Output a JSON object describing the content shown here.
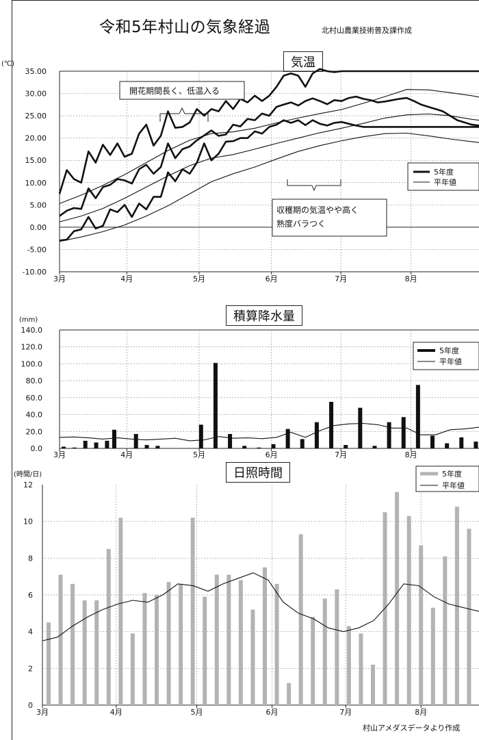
{
  "header": {
    "title": "令和5年村山の気象経過",
    "credit": "北村山農業技術普及課作成"
  },
  "footer": {
    "source": "村山アメダスデータより作成"
  },
  "chart_data": [
    {
      "type": "line",
      "title": "気温",
      "unit_label": "(℃)",
      "ylim": [
        -10,
        35
      ],
      "yticks": [
        "35.00",
        "30.00",
        "25.00",
        "20.00",
        "15.00",
        "10.00",
        "5.00",
        "0.00",
        "-5.00",
        "-10.00"
      ],
      "xticks": [
        "3月",
        "4月",
        "5月",
        "6月",
        "7月",
        "8月"
      ],
      "x_domain": [
        0,
        58
      ],
      "x_tick_positions": [
        0,
        9.3,
        19.3,
        29.3,
        38.9,
        48.6
      ],
      "legend": [
        {
          "name": "5年度",
          "style": "thick"
        },
        {
          "name": "平年値",
          "style": "thin"
        }
      ],
      "annotations": [
        "開花期間長く、低温入る",
        "収穫期の気温やや高く\n熟度バラつく"
      ],
      "series": [
        {
          "name": "5年度 最高",
          "style": "thick",
          "x": [
            0,
            1,
            2,
            3,
            4,
            5,
            6,
            7,
            8,
            9,
            10,
            11,
            12,
            13,
            14,
            15,
            16,
            17,
            18,
            19,
            20,
            21,
            22,
            23,
            24,
            25,
            26,
            27,
            28,
            29,
            30,
            31,
            32,
            33,
            34,
            35,
            36,
            37,
            38,
            39,
            40,
            41,
            42,
            43,
            44,
            45,
            46,
            47,
            48,
            49,
            50,
            51,
            52,
            53,
            54,
            55,
            56,
            57,
            58
          ],
          "y": [
            7.5,
            12.8,
            10.8,
            10,
            17,
            14.5,
            18.5,
            16.2,
            18.8,
            15.8,
            16.5,
            21,
            23,
            18.3,
            20.5,
            26,
            22.3,
            22.5,
            23.5,
            26.5,
            25,
            26.5,
            26,
            28.3,
            26.5,
            28.8,
            28,
            29.5,
            28.3,
            29.5,
            31.5,
            34,
            34.5,
            34,
            31.5,
            34.5,
            35.5,
            35,
            34.8,
            35,
            35,
            35,
            35,
            35,
            35,
            35,
            35,
            35,
            35,
            35,
            35,
            35,
            35,
            35,
            35,
            35,
            35,
            35,
            35
          ]
        },
        {
          "name": "平年値 最高",
          "style": "thin",
          "x": [
            0,
            3,
            6,
            9,
            12,
            15,
            18,
            21,
            24,
            27,
            30,
            33,
            36,
            39,
            42,
            45,
            48,
            51,
            54,
            57,
            58
          ],
          "y": [
            5.3,
            7.2,
            9.4,
            11.8,
            14.5,
            17.2,
            19.5,
            21,
            21.4,
            22.2,
            23.4,
            24.5,
            25.5,
            26.4,
            27.8,
            29.3,
            30.9,
            30.8,
            30.2,
            29.5,
            29.2
          ]
        },
        {
          "name": "5年度 平均",
          "style": "thick",
          "x": [
            0,
            1,
            2,
            3,
            4,
            5,
            6,
            7,
            8,
            9,
            10,
            11,
            12,
            13,
            14,
            15,
            16,
            17,
            18,
            19,
            20,
            21,
            22,
            23,
            24,
            25,
            26,
            27,
            28,
            29,
            30,
            31,
            32,
            33,
            34,
            35,
            36,
            37,
            38,
            39,
            40,
            41,
            42,
            43,
            44,
            45,
            46,
            47,
            48,
            49,
            50,
            51,
            52,
            53,
            54,
            55,
            56,
            57,
            58
          ],
          "y": [
            2.5,
            3.7,
            4.3,
            4.1,
            8.7,
            6.5,
            9,
            9.5,
            10.8,
            10.5,
            9.8,
            13,
            14,
            12,
            13.5,
            18.8,
            15.5,
            17.5,
            18.1,
            19.5,
            20.6,
            21.7,
            20.5,
            20.8,
            23,
            22.6,
            24.3,
            24,
            25.5,
            25,
            27,
            27.5,
            28,
            27.3,
            28.3,
            28.9,
            28.3,
            27.6,
            28.5,
            28.3,
            29,
            29.3,
            28.8,
            28.5,
            28,
            28.2,
            28.5,
            28.8,
            29,
            28.3,
            27.5,
            27,
            26.5,
            26,
            25,
            24,
            23.5,
            23,
            22.8
          ]
        },
        {
          "name": "平年値 平均",
          "style": "thin",
          "x": [
            0,
            3,
            6,
            9,
            12,
            15,
            18,
            21,
            24,
            27,
            30,
            33,
            36,
            39,
            42,
            45,
            48,
            51,
            54,
            57,
            58
          ],
          "y": [
            1.2,
            2.5,
            4.2,
            6.5,
            9,
            11.5,
            13.8,
            15.5,
            16.3,
            17.5,
            18.8,
            20,
            21.2,
            22.2,
            23.3,
            24.5,
            25.2,
            25.4,
            25,
            24.2,
            24
          ]
        },
        {
          "name": "5年度 最低",
          "style": "thick",
          "x": [
            0,
            1,
            2,
            3,
            4,
            5,
            6,
            7,
            8,
            9,
            10,
            11,
            12,
            13,
            14,
            15,
            16,
            17,
            18,
            19,
            20,
            21,
            22,
            23,
            24,
            25,
            26,
            27,
            28,
            29,
            30,
            31,
            32,
            33,
            34,
            35,
            36,
            37,
            38,
            39,
            40,
            41,
            42,
            43,
            44,
            45,
            46,
            47,
            48,
            49,
            50,
            51,
            52,
            53,
            54,
            55,
            56,
            57,
            58
          ],
          "y": [
            -3,
            -2.8,
            -0.9,
            -0.5,
            2.3,
            -0.3,
            0.3,
            4,
            3.4,
            5,
            2.3,
            5.3,
            4,
            6.8,
            6.8,
            12.3,
            10.3,
            13,
            12,
            14.5,
            18.8,
            15,
            16.5,
            19.2,
            19.3,
            20,
            20,
            21.5,
            21,
            22.5,
            23,
            24,
            23.4,
            24,
            22.9,
            24,
            23.2,
            22.8,
            23.4,
            23.6,
            23.2,
            22.8,
            22.5,
            22.5,
            22.5,
            22.5,
            22.5,
            22.5,
            22.5,
            22.5,
            22.5,
            22.5,
            22.5,
            22.5,
            22.5,
            22.5,
            22.5,
            22.5,
            22.5
          ]
        },
        {
          "name": "平年値 最低",
          "style": "thin",
          "x": [
            0,
            3,
            6,
            9,
            12,
            15,
            18,
            21,
            24,
            27,
            30,
            33,
            36,
            39,
            42,
            45,
            48,
            51,
            54,
            57,
            58
          ],
          "y": [
            -3.2,
            -2.2,
            -1,
            0.5,
            2.5,
            4.8,
            7.5,
            10.2,
            12,
            13.5,
            15.3,
            17,
            18.3,
            19.4,
            20.3,
            21,
            21.1,
            20.5,
            19.8,
            19.2,
            19
          ]
        }
      ]
    },
    {
      "type": "bar",
      "title": "積算降水量",
      "unit_label": "(mm)",
      "ylim": [
        0,
        140
      ],
      "yticks": [
        "140.0",
        "120.0",
        "100.0",
        "80.0",
        "60.0",
        "40.0",
        "20.0",
        "0.0"
      ],
      "xticks": [
        "3月",
        "4月",
        "5月",
        "6月",
        "7月",
        "8月"
      ],
      "x_domain": [
        0,
        58
      ],
      "x_tick_positions": [
        0,
        9.3,
        19.3,
        29.3,
        38.9,
        48.6
      ],
      "legend": [
        {
          "name": "5年度",
          "style": "bar"
        },
        {
          "name": "平年値",
          "style": "line"
        }
      ],
      "bars": {
        "name": "5年度",
        "x": [
          0,
          1.5,
          3,
          4.5,
          6,
          7,
          10,
          11.5,
          13,
          19,
          21,
          23,
          25,
          27,
          29,
          31,
          33,
          35,
          37,
          39,
          41,
          43,
          45,
          47,
          49,
          51,
          53,
          55,
          57,
          58
        ],
        "values": [
          2,
          1,
          9,
          7,
          9,
          22,
          17,
          4,
          3,
          28,
          101,
          17,
          3,
          1,
          5,
          23,
          11,
          31,
          55,
          4,
          48,
          3,
          31,
          37,
          75,
          15,
          6,
          13,
          8,
          6
        ]
      },
      "line": {
        "name": "平年値",
        "x": [
          0,
          2,
          4,
          6,
          8,
          10,
          12,
          14,
          16,
          18,
          20,
          22,
          24,
          26,
          28,
          30,
          32,
          34,
          36,
          38,
          40,
          42,
          44,
          46,
          48,
          50,
          52,
          54,
          56,
          58
        ],
        "values": [
          13,
          13.5,
          12.5,
          11,
          12.5,
          11,
          10,
          11,
          12,
          9,
          10,
          14,
          12,
          12.5,
          11.5,
          13,
          19,
          13,
          21,
          27,
          29,
          29.5,
          28,
          24,
          24,
          16,
          16,
          22,
          23,
          25
        ]
      }
    },
    {
      "type": "bar",
      "title": "日照時間",
      "unit_label": "(時間/日)",
      "ylim": [
        0,
        12
      ],
      "yticks": [
        "12",
        "10",
        "8",
        "6",
        "4",
        "2",
        "0"
      ],
      "xticks": [
        "3月",
        "4月",
        "5月",
        "6月",
        "7月",
        "8月"
      ],
      "x_domain": [
        0,
        58
      ],
      "x_tick_positions": [
        0,
        9.8,
        20.5,
        30.5,
        40.3,
        50.3
      ],
      "legend": [
        {
          "name": "5年度",
          "style": "bar"
        },
        {
          "name": "平年値",
          "style": "line"
        }
      ],
      "bars": {
        "name": "5年度",
        "values": [
          4.5,
          7.1,
          6.6,
          5.7,
          5.7,
          8.5,
          10.2,
          3.9,
          6.1,
          6,
          6.7,
          6.6,
          10.2,
          5.9,
          7.1,
          7.1,
          6.8,
          5.2,
          7.5,
          6.6,
          1.2,
          9.3,
          4.8,
          5.8,
          6.3,
          4.3,
          3.9,
          2.2,
          10.5,
          11.6,
          10.3,
          8.7,
          5.3,
          8.1,
          10.8,
          9.6
        ]
      },
      "line": {
        "name": "平年値",
        "x": [
          0,
          2,
          4,
          6,
          8,
          10,
          12,
          14,
          16,
          18,
          20,
          22,
          24,
          26,
          28,
          30,
          32,
          34,
          36,
          38,
          40,
          42,
          44,
          46,
          48,
          50,
          52,
          54,
          56,
          58
        ],
        "values": [
          3.5,
          3.7,
          4.3,
          4.8,
          5.2,
          5.5,
          5.7,
          5.6,
          6,
          6.6,
          6.5,
          6.2,
          6.6,
          6.9,
          7.2,
          6.8,
          5.6,
          5,
          4.7,
          4.2,
          4,
          4.2,
          4.6,
          5.5,
          6.6,
          6.5,
          5.9,
          5.5,
          5.3,
          5.1
        ]
      }
    }
  ]
}
